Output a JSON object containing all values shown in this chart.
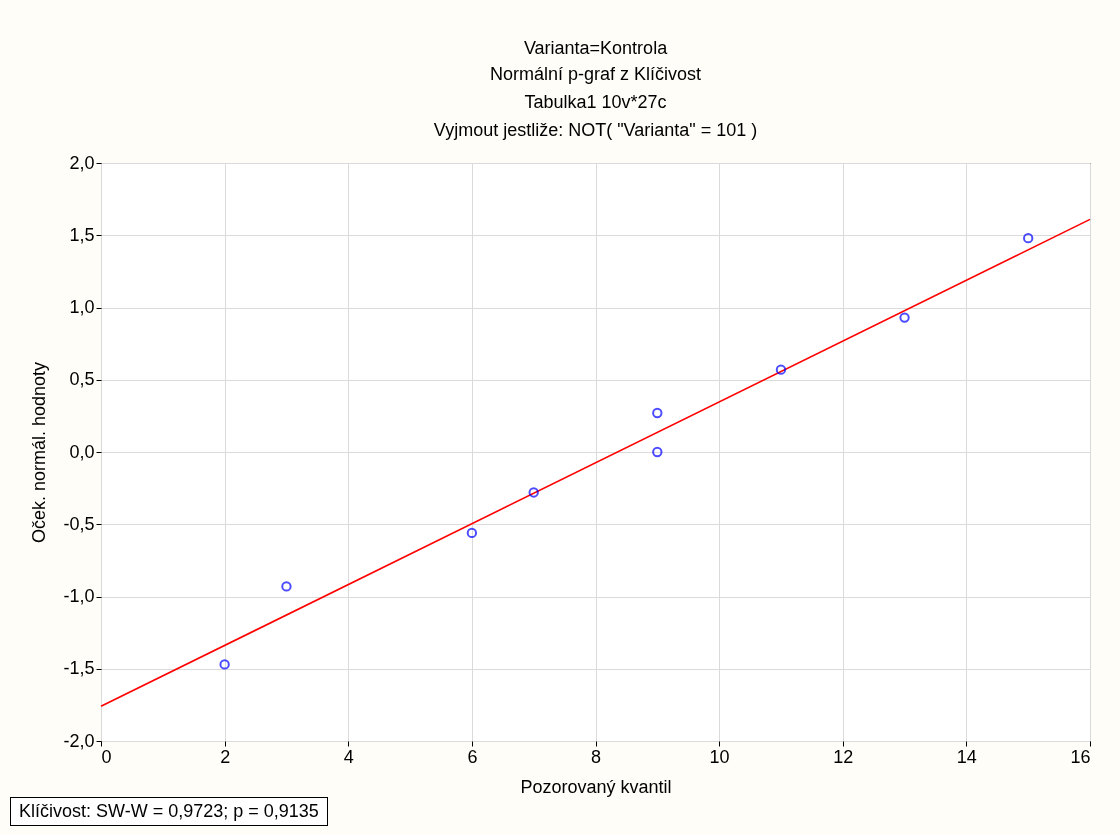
{
  "chart_data": {
    "type": "scatter",
    "title": "Varianta=Kontrola",
    "subtitle": "Normální p-graf z Klíčivost",
    "annotations": [
      "Tabulka1 10v*27c",
      "Vyjmout jestliže:  NOT( \"Varianta\" = 101 )",
      "Klíčivost:  SW-W = 0,9723; p = 0,9135"
    ],
    "xlabel": "Pozorovaný kvantil",
    "ylabel": "Oček. normál. hodnoty",
    "series": [
      {
        "color": "#0000ff",
        "marker": "circle",
        "x": [
          2,
          3,
          6,
          7,
          9,
          9,
          11,
          13,
          15
        ],
        "values": [
          -1.47,
          -0.93,
          -0.56,
          -0.28,
          0.27,
          0.0,
          0.57,
          0.93,
          1.48
        ]
      },
      {
        "type": "line",
        "color": "#ff0000",
        "line_style": "solid",
        "x": [
          0,
          16
        ],
        "values": [
          -1.76,
          1.61
        ]
      }
    ],
    "xlim": [
      0,
      16
    ],
    "xticks": [
      0,
      2,
      4,
      6,
      8,
      10,
      12,
      14,
      16
    ],
    "ylim": [
      -2,
      2
    ],
    "yticks": [
      {
        "value": -2,
        "label": "-2,0"
      },
      {
        "value": -1.5,
        "label": "-1,5"
      },
      {
        "value": -1,
        "label": "-1,0"
      },
      {
        "value": -0.5,
        "label": "-0,5"
      },
      {
        "value": 0,
        "label": "0,0"
      },
      {
        "value": 0.5,
        "label": "0,5"
      },
      {
        "value": 1,
        "label": "1,0"
      },
      {
        "value": 1.5,
        "label": "1,5"
      },
      {
        "value": 2,
        "label": "2,0"
      }
    ],
    "grid": true
  }
}
